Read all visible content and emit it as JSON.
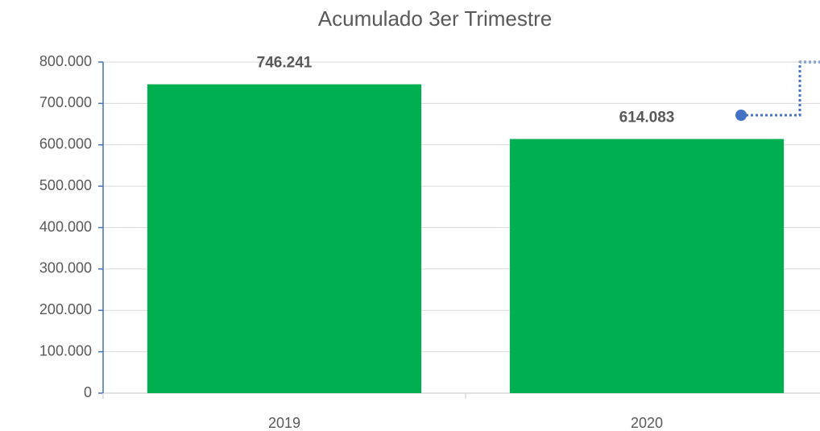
{
  "chart_data": {
    "type": "bar",
    "title": "Acumulado 3er Trimestre",
    "categories": [
      "2019",
      "2020"
    ],
    "values": [
      746241,
      614083
    ],
    "value_labels": [
      "746.241",
      "614.083"
    ],
    "color": "#00b050",
    "ylim": [
      0,
      800000
    ],
    "yticks": [
      0,
      {
        "value": 100000,
        "label": "100.000"
      },
      {
        "value": 200000,
        "label": "200.000"
      },
      {
        "value": 300000,
        "label": "300.000"
      },
      {
        "value": 400000,
        "label": "400.000"
      },
      {
        "value": 500000,
        "label": "500.000"
      },
      {
        "value": 600000,
        "label": "600.000"
      },
      {
        "value": 700000,
        "label": "700.000"
      },
      {
        "value": 800000,
        "label": "800.000"
      }
    ],
    "grid": true
  }
}
